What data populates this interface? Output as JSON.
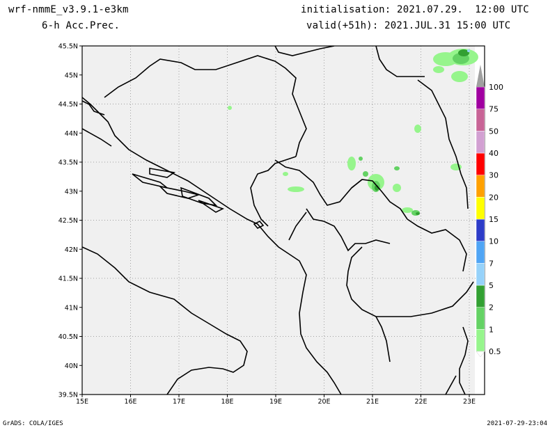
{
  "header": {
    "model": "wrf-nmmE_v3.9.1-e3km",
    "field": "6-h Acc.Prec.",
    "init": "initialisation: 2021.07.29.  12:00 UTC",
    "valid": "valid(+51h): 2021.JUL.31 15:00 UTC"
  },
  "footer": {
    "credit": "GrADS: COLA/IGES",
    "timestamp": "2021-07-29-23:04"
  },
  "map": {
    "lat_labels": [
      "45.5N",
      "45N",
      "44.5N",
      "44N",
      "43.5N",
      "43N",
      "42.5N",
      "42N",
      "41.5N",
      "41N",
      "40.5N",
      "40N",
      "39.5N"
    ],
    "lon_labels": [
      "15E",
      "16E",
      "17E",
      "18E",
      "19E",
      "20E",
      "21E",
      "22E",
      "23E"
    ],
    "land_color": "#f0f0f0",
    "grid": true
  },
  "colorbar": {
    "levels": [
      "0.5",
      "1",
      "2",
      "5",
      "7",
      "10",
      "15",
      "20",
      "30",
      "40",
      "50",
      "75",
      "100"
    ],
    "colors": [
      "#96f58c",
      "#64d264",
      "#32a032",
      "#96d2fa",
      "#50a5f5",
      "#2d3cc8",
      "#ffff00",
      "#ffa000",
      "#ff0000",
      "#d2a0d2",
      "#c86496",
      "#a000a0",
      "#a0a0a0"
    ]
  }
}
